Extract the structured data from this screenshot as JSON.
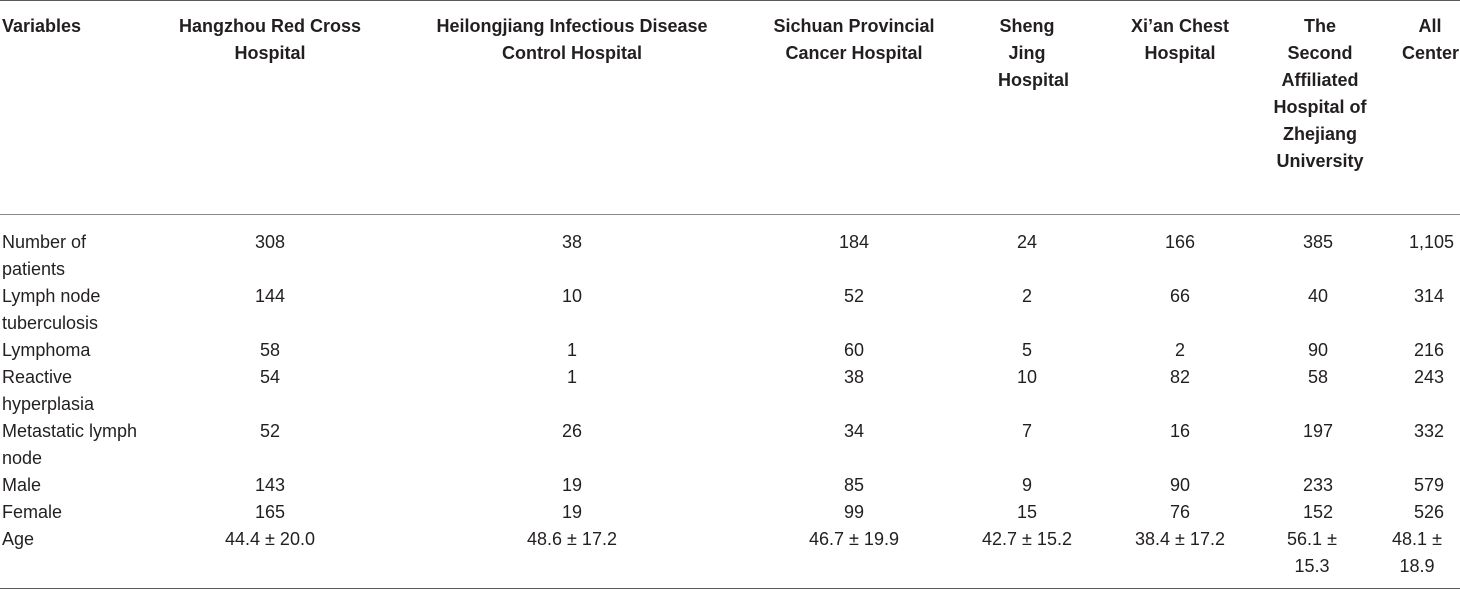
{
  "table": {
    "headers": [
      "Variables",
      "Hangzhou Red Cross Hospital",
      "Heilongjiang Infectious Disease Control Hospital",
      "Sichuan Provincial Cancer Hospital",
      "Sheng Jing Hospital",
      "Xi’an Chest Hospital",
      "The Second Affiliated Hospital of Zhejiang University",
      "All Center"
    ],
    "rows": [
      {
        "label": "Number of patients",
        "values": [
          "308",
          "38",
          "184",
          "24",
          "166",
          "385",
          "1,105"
        ]
      },
      {
        "label": "Lymph node tuberculosis",
        "values": [
          "144",
          "10",
          "52",
          "2",
          "66",
          "40",
          "314"
        ]
      },
      {
        "label": "Lymphoma",
        "values": [
          "58",
          "1",
          "60",
          "5",
          "2",
          "90",
          "216"
        ]
      },
      {
        "label": "Reactive hyperplasia",
        "values": [
          "54",
          "1",
          "38",
          "10",
          "82",
          "58",
          "243"
        ]
      },
      {
        "label": "Metastatic lymph node",
        "values": [
          "52",
          "26",
          "34",
          "7",
          "16",
          "197",
          "332"
        ]
      },
      {
        "label": "Male",
        "values": [
          "143",
          "19",
          "85",
          "9",
          "90",
          "233",
          "579"
        ]
      },
      {
        "label": "Female",
        "values": [
          "165",
          "19",
          "99",
          "15",
          "76",
          "152",
          "526"
        ]
      },
      {
        "label": "Age",
        "values": [
          "44.4 ± 20.0",
          "48.6 ± 17.2",
          "46.7 ± 19.9",
          "42.7 ± 15.2",
          "38.4 ± 17.2",
          "56.1 ± 15.3",
          "48.1 ± 18.9"
        ]
      }
    ]
  }
}
